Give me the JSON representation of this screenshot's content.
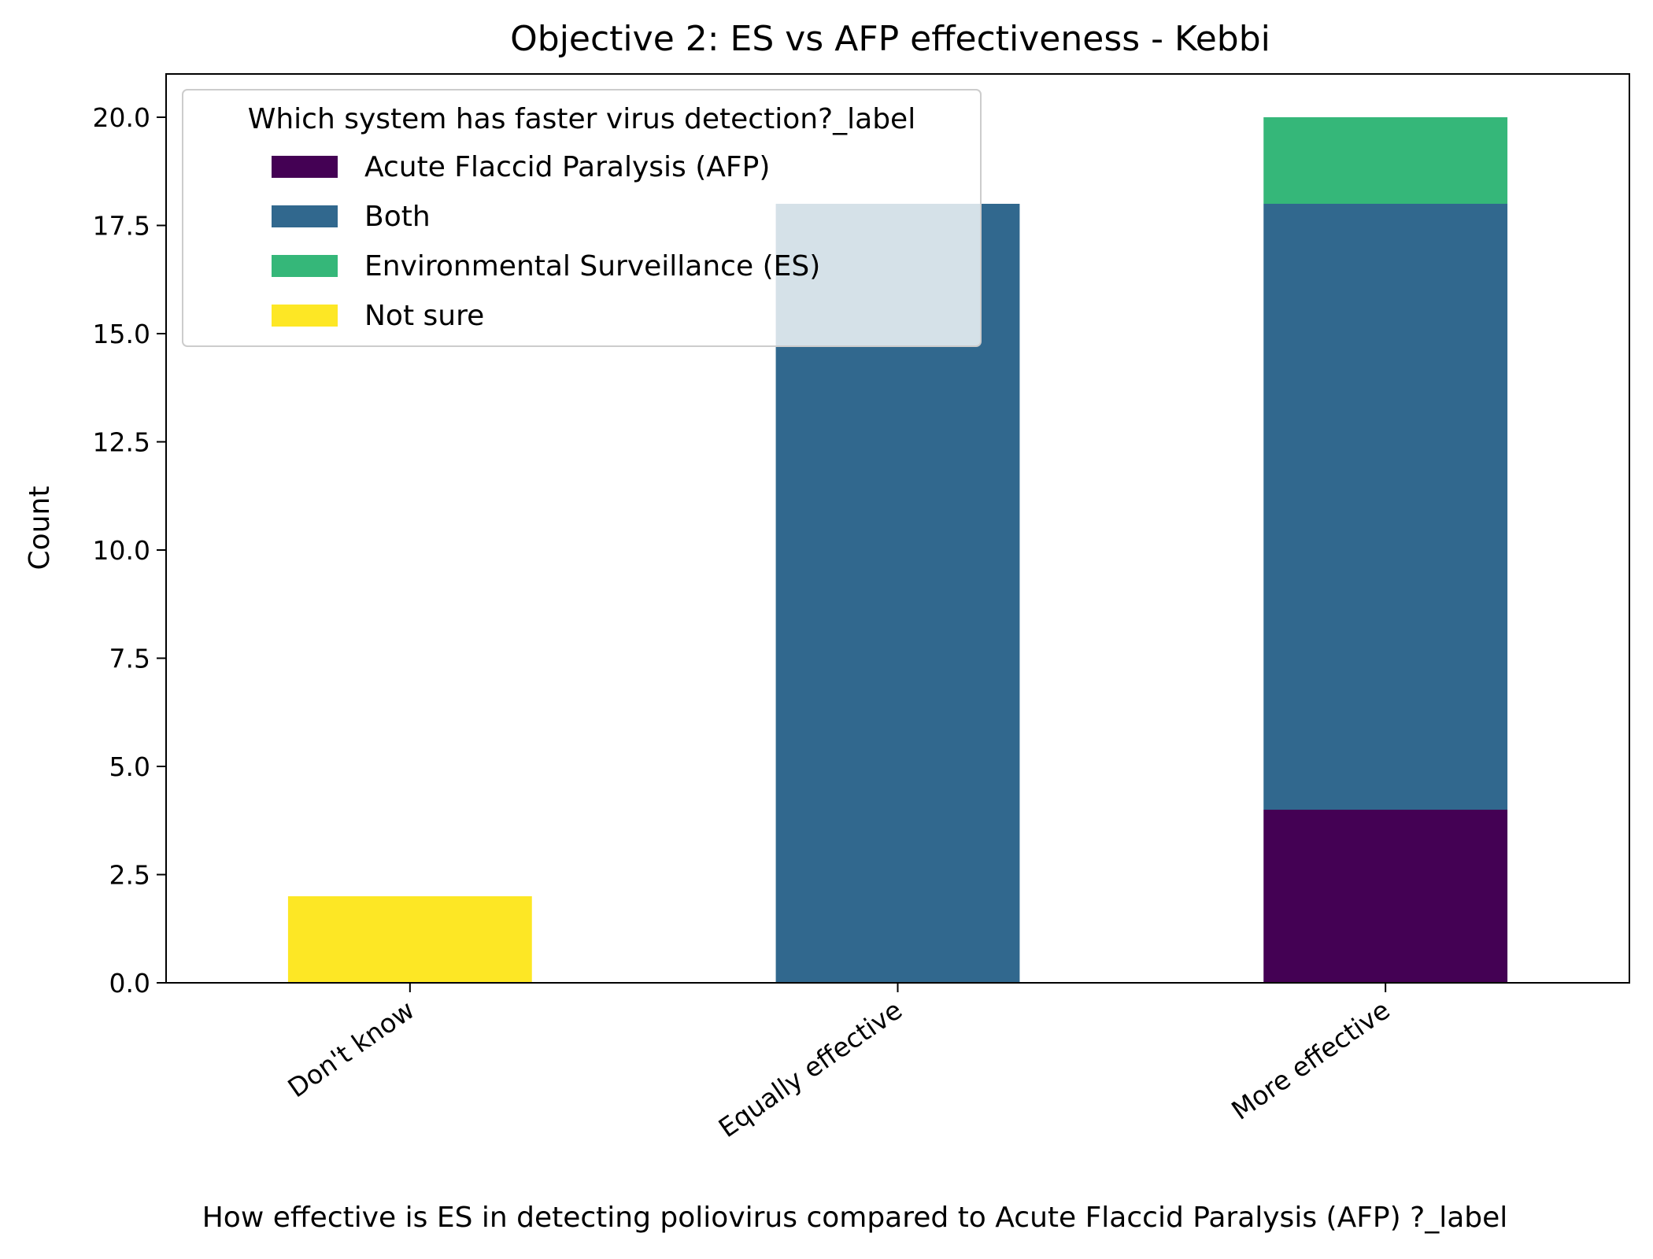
{
  "chart_data": {
    "type": "bar",
    "stacked": true,
    "title": "Objective 2: ES vs AFP effectiveness - Kebbi",
    "xlabel": "How effective is ES in detecting poliovirus compared to  Acute Flaccid Paralysis (AFP) ?_label",
    "ylabel": "Count",
    "categories": [
      "Don't know",
      "Equally effective",
      "More effective"
    ],
    "series": [
      {
        "name": "Acute Flaccid Paralysis (AFP)",
        "color": "#440154",
        "values": [
          0,
          0,
          4
        ]
      },
      {
        "name": "Both",
        "color": "#31688e",
        "values": [
          0,
          18,
          14
        ]
      },
      {
        "name": "Environmental Surveillance (ES)",
        "color": "#35b779",
        "values": [
          0,
          0,
          2
        ]
      },
      {
        "name": "Not sure",
        "color": "#fde725",
        "values": [
          2,
          0,
          0
        ]
      }
    ],
    "ylim": [
      0,
      21
    ],
    "yticks": [
      0.0,
      2.5,
      5.0,
      7.5,
      10.0,
      12.5,
      15.0,
      17.5,
      20.0
    ],
    "ytick_labels": [
      "0.0",
      "2.5",
      "5.0",
      "7.5",
      "10.0",
      "12.5",
      "15.0",
      "17.5",
      "20.0"
    ],
    "legend": {
      "title": "Which system has faster virus detection?_label",
      "placement": "upper left"
    },
    "grid": false
  }
}
